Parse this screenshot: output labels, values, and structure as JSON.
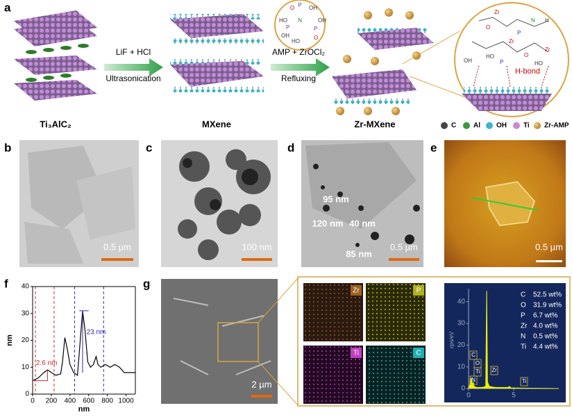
{
  "panel_labels": [
    "a",
    "b",
    "c",
    "d",
    "e",
    "f",
    "g"
  ],
  "schematic": {
    "stages": [
      "Ti₃AlC₂",
      "MXene",
      "Zr-MXene"
    ],
    "step1": {
      "reagents": "LiF + HCl",
      "method": "Ultrasonication"
    },
    "step2": {
      "reagents": "AMP + ZrOCl₂",
      "method": "Refluxing"
    },
    "amp_atoms": [
      "P",
      "OH",
      "O",
      "N",
      "HO",
      "P",
      "OH",
      "HO",
      "P",
      "OH",
      "O"
    ],
    "inset_atoms": [
      "Zr",
      "O",
      "P",
      "N",
      "H",
      "Zr",
      "OH",
      "HO",
      "P",
      "Zr",
      "HO",
      "O"
    ],
    "inset_label": "H-bond",
    "legend": [
      "C",
      "Al",
      "OH",
      "Ti",
      "Zr-AMP"
    ]
  },
  "tem": {
    "b": {
      "scale": "0.5 µm"
    },
    "c": {
      "scale": "100 nm"
    },
    "d": {
      "scale": "0.5 µm",
      "sizes": [
        "95 nm",
        "120 nm",
        "40 nm",
        "85 nm"
      ]
    },
    "e": {
      "scale": "0.5 µm"
    }
  },
  "sem": {
    "scale": "2 µm",
    "maps": [
      "Zr",
      "P",
      "Ti",
      "C"
    ]
  },
  "composition": [
    [
      "C",
      "52.5 wt%"
    ],
    [
      "O",
      "31.9 wt%"
    ],
    [
      "P",
      "6.7 wt%"
    ],
    [
      "Zr",
      "4.0 wt%"
    ],
    [
      "N",
      "0.5 wt%"
    ],
    [
      "Ti",
      "4.4 wt%"
    ]
  ],
  "chart_data": [
    {
      "type": "line",
      "x_label": "nm",
      "y_label": "nm",
      "x": [
        0,
        60,
        120,
        160,
        200,
        250,
        300,
        320,
        345,
        370,
        400,
        440,
        480,
        510,
        535,
        560,
        590,
        620,
        650,
        680,
        700,
        730,
        780,
        830,
        880,
        930,
        980,
        1040,
        1100
      ],
      "values": [
        5,
        6,
        8,
        9,
        8,
        7,
        7.5,
        12,
        21,
        17,
        11,
        8,
        7,
        20,
        31,
        24,
        12,
        10,
        11,
        14,
        11,
        10,
        11,
        10,
        11,
        10,
        8,
        8,
        8
      ],
      "color": "#000000",
      "reference_lines": [
        {
          "x": 30,
          "color": "#d62728"
        },
        {
          "x": 230,
          "color": "#d62728"
        },
        {
          "x": 450,
          "color": "#2b2ba8"
        },
        {
          "x": 760,
          "color": "#2b2ba8"
        }
      ],
      "annotations": [
        {
          "text": "2.6 nm",
          "color": "#d62728"
        },
        {
          "text": "23 nm",
          "color": "#2b2ba8"
        }
      ],
      "xlim": [
        0,
        1100
      ],
      "xticks": [
        0,
        200,
        400,
        600,
        800,
        1000
      ],
      "ylim": [
        0,
        40
      ],
      "yticks": [
        0,
        10,
        20,
        30,
        40
      ]
    },
    {
      "type": "area",
      "y_label": "cps/eV",
      "x": [
        0,
        0.15,
        0.28,
        0.35,
        0.39,
        0.45,
        0.52,
        0.6,
        0.9,
        1.5,
        1.9,
        2.01,
        2.1,
        2.3,
        3,
        4.4,
        4.51,
        4.7,
        6,
        8,
        10
      ],
      "values": [
        0,
        2,
        5,
        3,
        2,
        2.5,
        3,
        1,
        0.5,
        0.5,
        1,
        45,
        3,
        1,
        0.5,
        0.5,
        1,
        0.3,
        0.2,
        0.1,
        0
      ],
      "color": "#f0f000",
      "peak_labels": [
        "C",
        "O",
        "N",
        "Ti",
        "Zr",
        "Ti"
      ],
      "xlim": [
        0,
        10
      ],
      "xticks": [
        0,
        5
      ],
      "ylim": [
        0,
        46
      ],
      "yticks": [
        0,
        10,
        20,
        30,
        40
      ]
    }
  ]
}
